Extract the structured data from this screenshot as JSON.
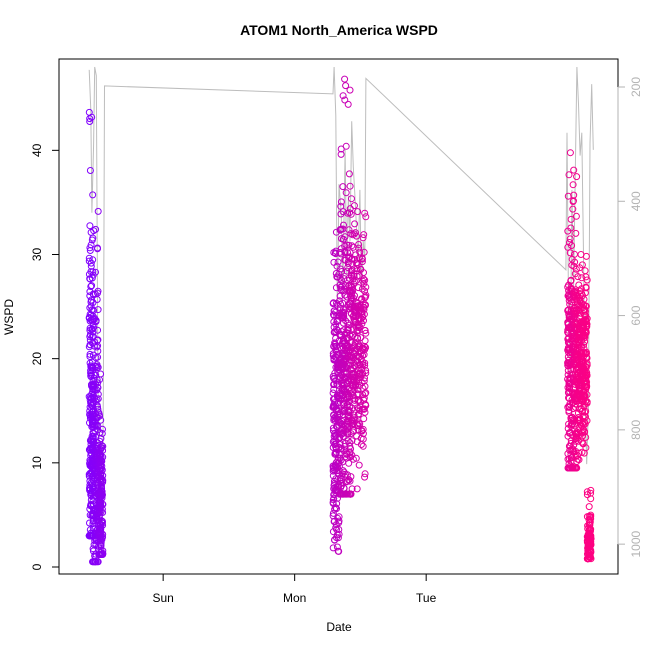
{
  "chart_data": {
    "type": "scatter",
    "title": "ATOM1 North_America WSPD",
    "xlabel": "Date",
    "ylabel": "WSPD",
    "x_unit": "hours since Sat 00:00",
    "xlim": [
      7.0,
      105.0
    ],
    "ylim": [
      0,
      48
    ],
    "x_ticks": [
      {
        "label": "Sun",
        "value": 24
      },
      {
        "label": "Mon",
        "value": 48
      },
      {
        "label": "Tue",
        "value": 72
      }
    ],
    "y_ticks": [
      0,
      10,
      20,
      30,
      40
    ],
    "right_axis": {
      "label": "",
      "reversed": true,
      "lim": [
        1040,
        165
      ],
      "ticks": [
        200,
        400,
        600,
        800,
        1000
      ],
      "color": "#b3b3b3"
    },
    "color_scale": {
      "start": "#7f00ff",
      "end": "#ff0080"
    },
    "series": [
      {
        "segments": [
          {
            "x_start": 10.5,
            "x_end": 11.3,
            "y_min": 3,
            "y_max": 46,
            "y_center": 14,
            "n": 220,
            "t_start": 0.0,
            "t_end": 0.05
          },
          {
            "x_start": 11.1,
            "x_end": 12.2,
            "y_min": 0.5,
            "y_max": 35,
            "y_center": 10,
            "n": 200,
            "t_start": 0.05,
            "t_end": 0.09
          },
          {
            "x_start": 12.2,
            "x_end": 13.0,
            "y_min": 1.2,
            "y_max": 19,
            "y_center": 6,
            "n": 160,
            "t_start": 0.09,
            "t_end": 0.12
          },
          {
            "x_start": 55.0,
            "x_end": 56.2,
            "y_min": 1.5,
            "y_max": 36,
            "y_center": 15,
            "n": 220,
            "t_start": 0.45,
            "t_end": 0.52
          },
          {
            "x_start": 56.2,
            "x_end": 58.3,
            "y_min": 7,
            "y_max": 48,
            "y_center": 19,
            "n": 340,
            "t_start": 0.52,
            "t_end": 0.62
          },
          {
            "x_start": 58.3,
            "x_end": 61.0,
            "y_min": 7.5,
            "y_max": 36,
            "y_center": 21,
            "n": 300,
            "t_start": 0.62,
            "t_end": 0.7
          },
          {
            "x_start": 97.8,
            "x_end": 99.5,
            "y_min": 9.5,
            "y_max": 40,
            "y_center": 19,
            "n": 300,
            "t_start": 0.84,
            "t_end": 0.92
          },
          {
            "x_start": 99.5,
            "x_end": 101.4,
            "y_min": 10,
            "y_max": 30,
            "y_center": 20,
            "n": 300,
            "t_start": 0.92,
            "t_end": 0.97
          },
          {
            "x_start": 101.4,
            "x_end": 102.1,
            "y_min": 0.8,
            "y_max": 7.5,
            "y_center": 2.3,
            "n": 100,
            "t_start": 0.97,
            "t_end": 1.0
          }
        ]
      },
      {
        "axis": "right",
        "color": "#bdbdbd",
        "x": [
          10.5,
          10.8,
          11.0,
          11.3,
          11.5,
          11.8,
          12.1,
          12.3,
          12.6,
          12.9,
          13.1,
          13.3,
          55.0,
          55.2,
          55.5,
          55.8,
          56.1,
          56.5,
          56.8,
          57.2,
          57.5,
          57.8,
          58.1,
          58.4,
          58.7,
          59.0,
          59.3,
          59.6,
          59.9,
          60.2,
          60.5,
          60.8,
          61.0,
          97.5,
          97.7,
          98.0,
          98.3,
          98.6,
          98.9,
          99.2,
          99.5,
          99.8,
          100.1,
          100.4,
          100.7,
          101.0,
          101.3,
          101.6,
          101.9,
          102.2,
          102.5
        ],
        "y": [
          170,
          240,
          420,
          300,
          165,
          180,
          700,
          870,
          1000,
          980,
          720,
          198,
          212,
          165,
          250,
          600,
          370,
          420,
          560,
          310,
          530,
          390,
          470,
          260,
          340,
          390,
          450,
          500,
          380,
          560,
          470,
          500,
          185,
          520,
          280,
          600,
          700,
          380,
          550,
          360,
          165,
          230,
          320,
          280,
          480,
          750,
          860,
          760,
          300,
          195,
          310
        ]
      }
    ]
  }
}
